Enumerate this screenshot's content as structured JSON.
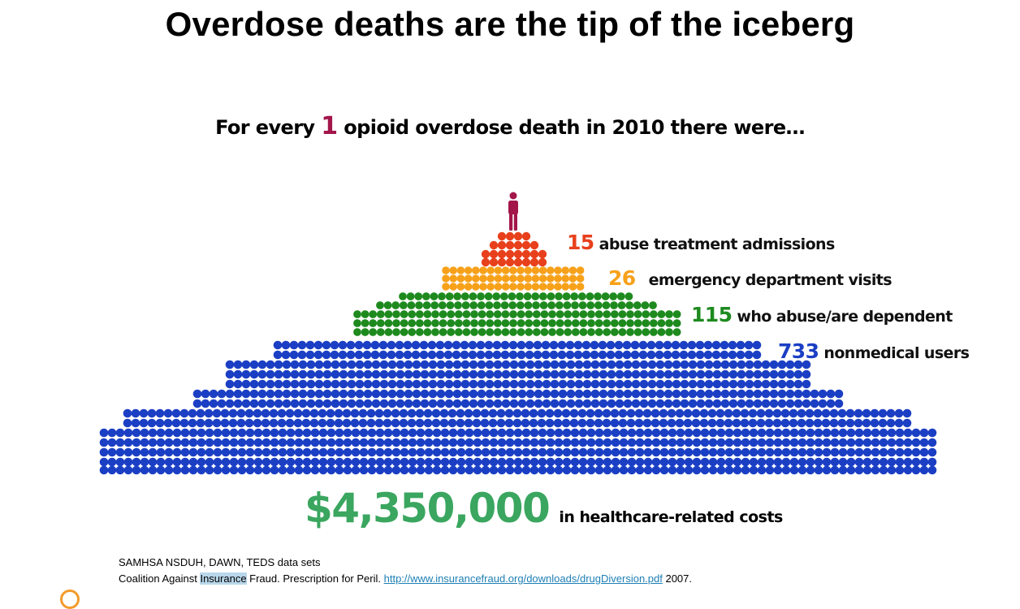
{
  "title": "Overdose deaths are the tip of the iceberg",
  "subtitle": {
    "prefix": "For every ",
    "number": "1",
    "suffix": " opioid overdose death in 2010 there were…"
  },
  "tiers": [
    {
      "number": "15",
      "text": "abuse treatment admissions",
      "color": "#e8401c"
    },
    {
      "number": "26",
      "text": "emergency department visits",
      "color": "#f7a11a"
    },
    {
      "number": "115",
      "text": "who abuse/are dependent",
      "color": "#1e8a1e"
    },
    {
      "number": "733",
      "text": "nonmedical  users",
      "color": "#1b3fc4"
    }
  ],
  "person_color": "#a3164a",
  "cost": {
    "amount": "$4,350,000",
    "text": "in healthcare-related costs",
    "color": "#3aa65f"
  },
  "sources": {
    "line1": "SAMHSA NSDUH, DAWN, TEDS data sets",
    "line2_pre": "Coalition Against ",
    "line2_highlight": "Insurance",
    "line2_mid": " Fraud. Prescription for Peril. ",
    "link": "http://www.insurancefraud.org/downloads/drugDiversion.pdf",
    "line2_post": " 2007."
  }
}
